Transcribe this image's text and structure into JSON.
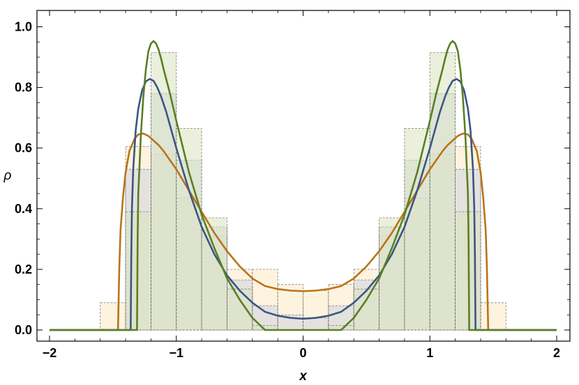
{
  "chart_data": {
    "type": "area",
    "xlabel": "x",
    "ylabel": "ρ",
    "xlim": [
      -2,
      2
    ],
    "ylim": [
      0,
      1.05
    ],
    "x_ticks": [
      -2,
      -1,
      0,
      1,
      2
    ],
    "x_tick_labels": [
      "−2",
      "−1",
      "0",
      "1",
      "2"
    ],
    "y_ticks": [
      0,
      0.2,
      0.4,
      0.6,
      0.8,
      1.0
    ],
    "y_tick_labels": [
      "0.0",
      "0.2",
      "0.4",
      "0.6",
      "0.8",
      "1.0"
    ],
    "grid": false,
    "legend": "none",
    "histograms": [
      {
        "color": "#f5a623",
        "fill": "#fde9c4",
        "bin_width": 0.2,
        "bins": [
          {
            "x0": -1.6,
            "h": 0.09
          },
          {
            "x0": -1.4,
            "h": 0.605
          },
          {
            "x0": -1.2,
            "h": 0.58
          },
          {
            "x0": -1.0,
            "h": 0.435
          },
          {
            "x0": -0.8,
            "h": 0.31
          },
          {
            "x0": -0.6,
            "h": 0.2
          },
          {
            "x0": -0.4,
            "h": 0.2
          },
          {
            "x0": -0.2,
            "h": 0.15
          },
          {
            "x0": 0.0,
            "h": 0.13
          },
          {
            "x0": 0.2,
            "h": 0.15
          },
          {
            "x0": 0.4,
            "h": 0.2
          },
          {
            "x0": 0.6,
            "h": 0.31
          },
          {
            "x0": 0.8,
            "h": 0.435
          },
          {
            "x0": 1.0,
            "h": 0.58
          },
          {
            "x0": 1.2,
            "h": 0.605
          },
          {
            "x0": 1.4,
            "h": 0.09
          }
        ]
      },
      {
        "color": "#4a5f8a",
        "fill": "#cdd3de",
        "bin_width": 0.2,
        "bins": [
          {
            "x0": -1.4,
            "h": 0.53
          },
          {
            "x0": -1.2,
            "h": 0.78
          },
          {
            "x0": -1.0,
            "h": 0.56
          },
          {
            "x0": -0.8,
            "h": 0.34
          },
          {
            "x0": -0.6,
            "h": 0.165
          },
          {
            "x0": -0.4,
            "h": 0.08
          },
          {
            "x0": -0.2,
            "h": 0.05
          },
          {
            "x0": 0.0,
            "h": 0.04
          },
          {
            "x0": 0.2,
            "h": 0.08
          },
          {
            "x0": 0.4,
            "h": 0.165
          },
          {
            "x0": 0.6,
            "h": 0.34
          },
          {
            "x0": 0.8,
            "h": 0.56
          },
          {
            "x0": 1.0,
            "h": 0.78
          },
          {
            "x0": 1.2,
            "h": 0.53
          }
        ]
      },
      {
        "color": "#6b8e23",
        "fill": "#d8e3bd",
        "bin_width": 0.2,
        "bins": [
          {
            "x0": -1.4,
            "h": 0.39
          },
          {
            "x0": -1.2,
            "h": 0.915
          },
          {
            "x0": -1.0,
            "h": 0.665
          },
          {
            "x0": -0.8,
            "h": 0.37
          },
          {
            "x0": -0.6,
            "h": 0.135
          },
          {
            "x0": -0.4,
            "h": 0.015
          },
          {
            "x0": -0.2,
            "h": 0.0
          },
          {
            "x0": 0.0,
            "h": 0.0
          },
          {
            "x0": 0.2,
            "h": 0.015
          },
          {
            "x0": 0.4,
            "h": 0.135
          },
          {
            "x0": 0.6,
            "h": 0.37
          },
          {
            "x0": 0.8,
            "h": 0.665
          },
          {
            "x0": 1.0,
            "h": 0.915
          },
          {
            "x0": 1.2,
            "h": 0.39
          }
        ]
      }
    ],
    "series": [
      {
        "color": "#b8741a",
        "x": [
          -2,
          -1.46,
          -1.45,
          -1.44,
          -1.42,
          -1.4,
          -1.37,
          -1.33,
          -1.3,
          -1.26,
          -1.22,
          -1.18,
          -1.14,
          -1.1,
          -1.05,
          -1.0,
          -0.9,
          -0.8,
          -0.7,
          -0.6,
          -0.5,
          -0.4,
          -0.3,
          -0.2,
          -0.1,
          0,
          0.1,
          0.2,
          0.3,
          0.4,
          0.5,
          0.6,
          0.7,
          0.8,
          0.9,
          1.0,
          1.05,
          1.1,
          1.14,
          1.18,
          1.22,
          1.26,
          1.3,
          1.33,
          1.37,
          1.4,
          1.42,
          1.44,
          1.45,
          1.46,
          2
        ],
        "y": [
          0,
          0,
          0.2,
          0.33,
          0.44,
          0.52,
          0.59,
          0.63,
          0.645,
          0.648,
          0.64,
          0.625,
          0.61,
          0.59,
          0.56,
          0.53,
          0.46,
          0.39,
          0.32,
          0.26,
          0.21,
          0.17,
          0.145,
          0.135,
          0.13,
          0.128,
          0.13,
          0.135,
          0.145,
          0.17,
          0.21,
          0.26,
          0.32,
          0.39,
          0.46,
          0.53,
          0.56,
          0.59,
          0.61,
          0.625,
          0.64,
          0.648,
          0.645,
          0.63,
          0.59,
          0.52,
          0.44,
          0.33,
          0.2,
          0,
          0
        ]
      },
      {
        "color": "#3a5683",
        "x": [
          -2,
          -1.36,
          -1.355,
          -1.35,
          -1.34,
          -1.32,
          -1.3,
          -1.27,
          -1.24,
          -1.21,
          -1.18,
          -1.15,
          -1.12,
          -1.08,
          -1.0,
          -0.9,
          -0.8,
          -0.7,
          -0.6,
          -0.5,
          -0.4,
          -0.3,
          -0.2,
          -0.1,
          0,
          0.1,
          0.2,
          0.3,
          0.4,
          0.5,
          0.6,
          0.7,
          0.8,
          0.9,
          1.0,
          1.08,
          1.12,
          1.15,
          1.18,
          1.21,
          1.24,
          1.27,
          1.3,
          1.32,
          1.34,
          1.35,
          1.355,
          1.36,
          2
        ],
        "y": [
          0,
          0,
          0.25,
          0.4,
          0.53,
          0.66,
          0.73,
          0.79,
          0.82,
          0.828,
          0.822,
          0.8,
          0.77,
          0.72,
          0.6,
          0.46,
          0.34,
          0.25,
          0.18,
          0.13,
          0.09,
          0.06,
          0.047,
          0.04,
          0.037,
          0.04,
          0.047,
          0.06,
          0.09,
          0.13,
          0.18,
          0.25,
          0.34,
          0.46,
          0.6,
          0.72,
          0.77,
          0.8,
          0.822,
          0.828,
          0.82,
          0.79,
          0.73,
          0.66,
          0.53,
          0.4,
          0.25,
          0,
          0
        ]
      },
      {
        "color": "#5a7f24",
        "x": [
          -2,
          -1.31,
          -1.305,
          -1.3,
          -1.28,
          -1.26,
          -1.24,
          -1.22,
          -1.2,
          -1.18,
          -1.16,
          -1.14,
          -1.12,
          -1.1,
          -1.05,
          -1.0,
          -0.9,
          -0.8,
          -0.7,
          -0.6,
          -0.5,
          -0.4,
          -0.3,
          0.3,
          0.4,
          0.5,
          0.6,
          0.7,
          0.8,
          0.9,
          1.0,
          1.05,
          1.1,
          1.12,
          1.14,
          1.16,
          1.18,
          1.2,
          1.22,
          1.24,
          1.26,
          1.28,
          1.3,
          1.305,
          1.31,
          2
        ],
        "y": [
          0,
          0,
          0.3,
          0.45,
          0.64,
          0.77,
          0.86,
          0.92,
          0.945,
          0.953,
          0.945,
          0.925,
          0.895,
          0.86,
          0.78,
          0.69,
          0.52,
          0.38,
          0.27,
          0.17,
          0.1,
          0.04,
          0,
          0,
          0.04,
          0.1,
          0.17,
          0.27,
          0.38,
          0.52,
          0.69,
          0.78,
          0.86,
          0.895,
          0.925,
          0.945,
          0.953,
          0.945,
          0.92,
          0.86,
          0.77,
          0.64,
          0.45,
          0.3,
          0,
          0
        ]
      }
    ]
  }
}
